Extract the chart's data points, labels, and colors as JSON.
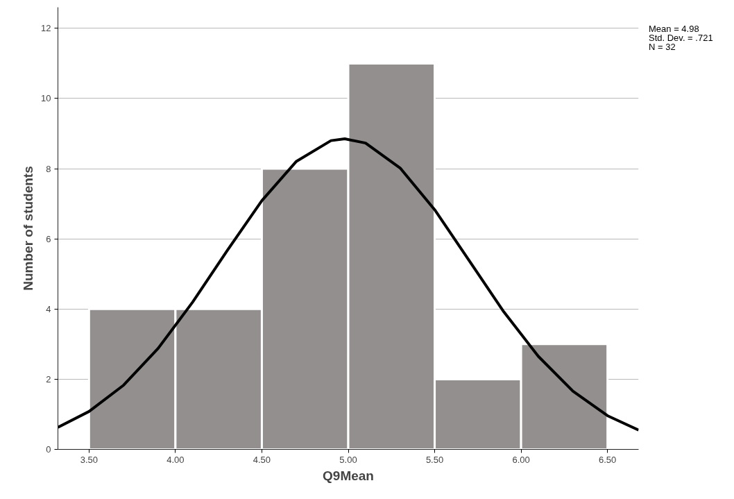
{
  "chart_data": {
    "type": "histogram",
    "xlabel": "Q9Mean",
    "ylabel": "Number of students",
    "bins": [
      3.5,
      4.0,
      4.5,
      5.0,
      5.5,
      6.0,
      6.5
    ],
    "series": [
      {
        "color": "#928f8e",
        "values": [
          4,
          4,
          8,
          11,
          2,
          3
        ]
      },
      {
        "type": "line",
        "color": "#000000",
        "x": [
          3.32,
          3.5,
          3.7,
          3.9,
          4.1,
          4.3,
          4.5,
          4.7,
          4.9,
          4.98,
          5.1,
          5.3,
          5.5,
          5.7,
          5.9,
          6.1,
          6.3,
          6.5,
          6.68
        ],
        "values": [
          0.63,
          1.08,
          1.83,
          2.88,
          4.2,
          5.67,
          7.09,
          8.21,
          8.8,
          8.85,
          8.73,
          8.02,
          6.83,
          5.38,
          3.92,
          2.65,
          1.66,
          0.96,
          0.55
        ]
      }
    ],
    "xlim": [
      3.32,
      6.68
    ],
    "ylim": [
      0,
      12.6
    ],
    "xticks": [
      {
        "value": 3.5,
        "label": "3.50"
      },
      {
        "value": 4.0,
        "label": "4.00"
      },
      {
        "value": 4.5,
        "label": "4.50"
      },
      {
        "value": 5.0,
        "label": "5.00"
      },
      {
        "value": 5.5,
        "label": "5.50"
      },
      {
        "value": 6.0,
        "label": "6.00"
      },
      {
        "value": 6.5,
        "label": "6.50"
      }
    ],
    "yticks": [
      0,
      2,
      4,
      6,
      8,
      10,
      12
    ],
    "grid": "y",
    "annotations": [
      "Mean = 4.98",
      "Std. Dev. = .721",
      "N = 32"
    ]
  }
}
